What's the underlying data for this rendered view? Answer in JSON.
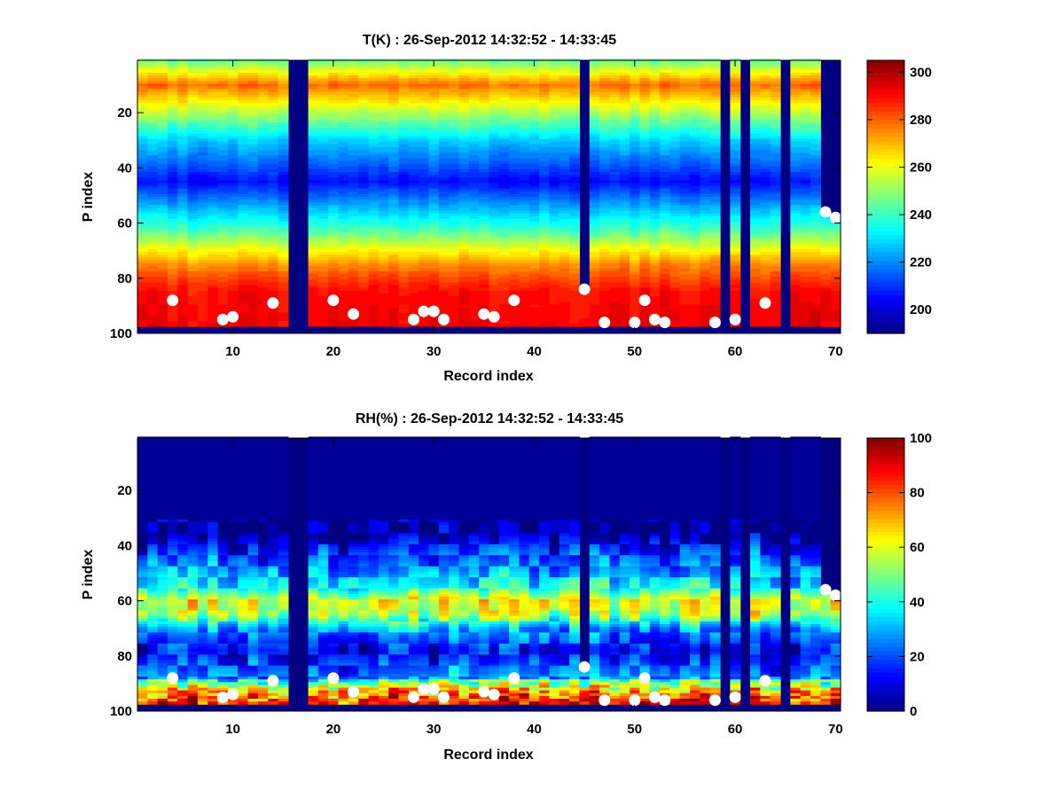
{
  "chart_data": [
    {
      "type": "heatmap",
      "title": "T(K) : 26-Sep-2012 14:32:52 - 14:33:45",
      "xlabel": "Record index",
      "ylabel": "P index",
      "xlim": [
        0.5,
        70.5
      ],
      "ylim": [
        1,
        100
      ],
      "y_reversed": true,
      "xticks": [
        10,
        20,
        30,
        40,
        50,
        60,
        70
      ],
      "yticks": [
        20,
        40,
        60,
        80,
        100
      ],
      "colormap": "jet",
      "clim": [
        190,
        305
      ],
      "colorbar_ticks": [
        200,
        220,
        240,
        260,
        280,
        300
      ],
      "profile_levels_pindex": [
        1,
        10,
        30,
        45,
        62,
        75,
        85,
        97
      ],
      "profile_values_K": [
        245,
        278,
        228,
        205,
        240,
        275,
        290,
        292
      ],
      "missing_records": [
        16,
        17,
        59,
        61,
        65
      ],
      "valid_top_pindex": {
        "45": 84,
        "69": 56,
        "70": 58
      },
      "marker_points": [
        {
          "x": 4,
          "y": 88
        },
        {
          "x": 9,
          "y": 95
        },
        {
          "x": 10,
          "y": 94
        },
        {
          "x": 14,
          "y": 89
        },
        {
          "x": 20,
          "y": 88
        },
        {
          "x": 22,
          "y": 93
        },
        {
          "x": 28,
          "y": 95
        },
        {
          "x": 29,
          "y": 92
        },
        {
          "x": 30,
          "y": 92
        },
        {
          "x": 31,
          "y": 95
        },
        {
          "x": 35,
          "y": 93
        },
        {
          "x": 36,
          "y": 94
        },
        {
          "x": 38,
          "y": 88
        },
        {
          "x": 45,
          "y": 84
        },
        {
          "x": 47,
          "y": 96
        },
        {
          "x": 50,
          "y": 96
        },
        {
          "x": 51,
          "y": 88
        },
        {
          "x": 52,
          "y": 95
        },
        {
          "x": 53,
          "y": 96
        },
        {
          "x": 58,
          "y": 96
        },
        {
          "x": 60,
          "y": 95
        },
        {
          "x": 63,
          "y": 89
        },
        {
          "x": 69,
          "y": 56
        },
        {
          "x": 70,
          "y": 58
        }
      ],
      "marker_color": "#ffffff"
    },
    {
      "type": "heatmap",
      "title": "RH(%) : 26-Sep-2012 14:32:52 - 14:33:45",
      "xlabel": "Record index",
      "ylabel": "P index",
      "xlim": [
        0.5,
        70.5
      ],
      "ylim": [
        1,
        100
      ],
      "y_reversed": true,
      "xticks": [
        10,
        20,
        30,
        40,
        50,
        60,
        70
      ],
      "yticks": [
        20,
        40,
        60,
        80,
        100
      ],
      "colormap": "jet",
      "clim": [
        0,
        100
      ],
      "colorbar_ticks": [
        0,
        20,
        40,
        60,
        80,
        100
      ],
      "profile_levels_pindex": [
        1,
        35,
        45,
        55,
        60,
        65,
        70,
        78,
        88,
        93,
        97
      ],
      "profile_values_pct": [
        2,
        3,
        22,
        38,
        62,
        55,
        28,
        12,
        28,
        60,
        75
      ],
      "missing_records": [
        16,
        17,
        59,
        61,
        65
      ],
      "valid_top_pindex": {
        "45": 84,
        "69": 56,
        "70": 58
      },
      "marker_points": [
        {
          "x": 4,
          "y": 88
        },
        {
          "x": 9,
          "y": 95
        },
        {
          "x": 10,
          "y": 94
        },
        {
          "x": 14,
          "y": 89
        },
        {
          "x": 20,
          "y": 88
        },
        {
          "x": 22,
          "y": 93
        },
        {
          "x": 28,
          "y": 95
        },
        {
          "x": 29,
          "y": 92
        },
        {
          "x": 30,
          "y": 92
        },
        {
          "x": 31,
          "y": 95
        },
        {
          "x": 35,
          "y": 93
        },
        {
          "x": 36,
          "y": 94
        },
        {
          "x": 38,
          "y": 88
        },
        {
          "x": 45,
          "y": 84
        },
        {
          "x": 47,
          "y": 96
        },
        {
          "x": 50,
          "y": 96
        },
        {
          "x": 51,
          "y": 88
        },
        {
          "x": 52,
          "y": 95
        },
        {
          "x": 53,
          "y": 96
        },
        {
          "x": 58,
          "y": 96
        },
        {
          "x": 60,
          "y": 95
        },
        {
          "x": 63,
          "y": 89
        },
        {
          "x": 69,
          "y": 56
        },
        {
          "x": 70,
          "y": 58
        }
      ],
      "marker_color": "#ffffff"
    }
  ]
}
